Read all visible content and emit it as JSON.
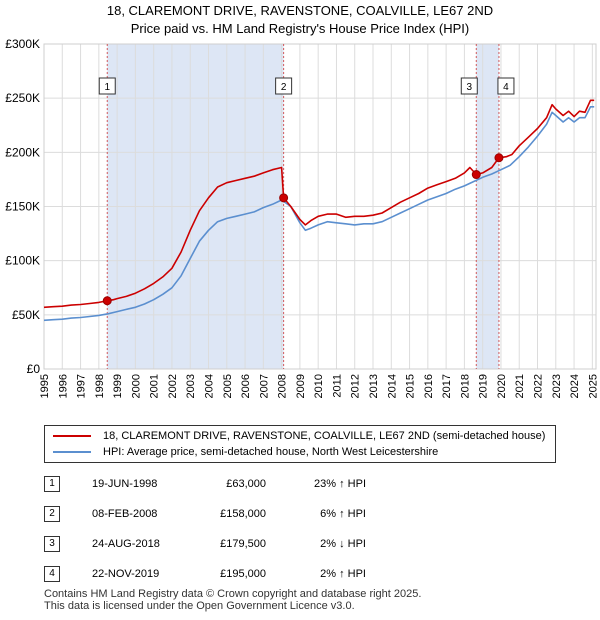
{
  "header": {
    "title_line1": "18, CLAREMONT DRIVE, RAVENSTONE, COALVILLE, LE67 2ND",
    "title_line2": "Price paid vs. HM Land Registry's House Price Index (HPI)"
  },
  "colors": {
    "price_line": "#cc0000",
    "hpi_line": "#5b8fcf",
    "shade": "#dde6f5",
    "marker_line": "#cc3333"
  },
  "chart_data": {
    "type": "line",
    "title": "Price paid vs. HM Land Registry's House Price Index (HPI)",
    "xlim": [
      1995.0,
      2025.2
    ],
    "ylim": [
      0,
      300000
    ],
    "x_ticks": [
      "1995",
      "1996",
      "1997",
      "1998",
      "1999",
      "2000",
      "2001",
      "2002",
      "2003",
      "2004",
      "2005",
      "2006",
      "2007",
      "2008",
      "2009",
      "2010",
      "2011",
      "2012",
      "2013",
      "2014",
      "2015",
      "2016",
      "2017",
      "2018",
      "2019",
      "2020",
      "2021",
      "2022",
      "2023",
      "2024",
      "2025"
    ],
    "y_ticks": [
      {
        "value": 0,
        "label": "£0"
      },
      {
        "value": 50000,
        "label": "£50K"
      },
      {
        "value": 100000,
        "label": "£100K"
      },
      {
        "value": 150000,
        "label": "£150K"
      },
      {
        "value": 200000,
        "label": "£200K"
      },
      {
        "value": 250000,
        "label": "£250K"
      },
      {
        "value": 300000,
        "label": "£300K"
      }
    ],
    "grid": true,
    "shaded_ranges": [
      [
        1998.46,
        2008.11
      ],
      [
        2018.65,
        2019.89
      ]
    ],
    "series": [
      {
        "name": "18, CLAREMONT DRIVE, RAVENSTONE, COALVILLE, LE67 2ND (semi-detached house)",
        "color": "#cc0000",
        "x": [
          1995.0,
          1995.5,
          1996.0,
          1996.5,
          1997.0,
          1997.5,
          1998.0,
          1998.46,
          1998.8,
          1999.0,
          1999.5,
          2000.0,
          2000.5,
          2001.0,
          2001.5,
          2002.0,
          2002.5,
          2003.0,
          2003.5,
          2004.0,
          2004.5,
          2005.0,
          2005.5,
          2006.0,
          2006.5,
          2007.0,
          2007.5,
          2008.0,
          2008.11,
          2008.5,
          2009.0,
          2009.3,
          2009.6,
          2010.0,
          2010.5,
          2011.0,
          2011.5,
          2012.0,
          2012.5,
          2013.0,
          2013.5,
          2014.0,
          2014.5,
          2015.0,
          2015.5,
          2016.0,
          2016.5,
          2017.0,
          2017.5,
          2018.0,
          2018.3,
          2018.65,
          2019.0,
          2019.5,
          2019.89,
          2020.3,
          2020.6,
          2021.0,
          2021.5,
          2022.0,
          2022.5,
          2022.8,
          2023.0,
          2023.4,
          2023.7,
          2024.0,
          2024.3,
          2024.6,
          2024.9,
          2025.1
        ],
        "y": [
          57000,
          57500,
          58000,
          59000,
          59500,
          60500,
          61500,
          63000,
          64000,
          65000,
          67000,
          70000,
          74000,
          79000,
          85000,
          93000,
          108000,
          128000,
          146000,
          158000,
          168000,
          172000,
          174000,
          176000,
          178000,
          181000,
          184000,
          186000,
          158000,
          150000,
          138000,
          133000,
          137000,
          141000,
          143000,
          143000,
          140000,
          141000,
          141000,
          142000,
          144000,
          149000,
          154000,
          158000,
          162000,
          167000,
          170000,
          173000,
          176000,
          181000,
          186000,
          179500,
          181000,
          186000,
          195000,
          196000,
          198000,
          206000,
          214000,
          222000,
          232000,
          244000,
          240000,
          234000,
          238000,
          233000,
          238000,
          237000,
          248000,
          248000
        ]
      },
      {
        "name": "HPI: Average price, semi-detached house, North West Leicestershire",
        "color": "#5b8fcf",
        "x": [
          1995.0,
          1995.5,
          1996.0,
          1996.5,
          1997.0,
          1997.5,
          1998.0,
          1998.5,
          1999.0,
          1999.5,
          2000.0,
          2000.5,
          2001.0,
          2001.5,
          2002.0,
          2002.5,
          2003.0,
          2003.5,
          2004.0,
          2004.5,
          2005.0,
          2005.5,
          2006.0,
          2006.5,
          2007.0,
          2007.5,
          2008.0,
          2008.5,
          2009.0,
          2009.3,
          2009.6,
          2010.0,
          2010.5,
          2011.0,
          2011.5,
          2012.0,
          2012.5,
          2013.0,
          2013.5,
          2014.0,
          2014.5,
          2015.0,
          2015.5,
          2016.0,
          2016.5,
          2017.0,
          2017.5,
          2018.0,
          2018.5,
          2019.0,
          2019.5,
          2020.0,
          2020.5,
          2021.0,
          2021.5,
          2022.0,
          2022.5,
          2022.8,
          2023.0,
          2023.4,
          2023.7,
          2024.0,
          2024.3,
          2024.6,
          2024.9,
          2025.1
        ],
        "y": [
          45000,
          45500,
          46000,
          47000,
          47500,
          48500,
          49500,
          51000,
          53000,
          55000,
          57000,
          60000,
          64000,
          69000,
          75000,
          86000,
          102000,
          118000,
          128000,
          136000,
          139000,
          141000,
          143000,
          145000,
          149000,
          152000,
          156000,
          150000,
          135000,
          128000,
          130000,
          133000,
          136000,
          135000,
          134000,
          133000,
          134000,
          134000,
          136000,
          140000,
          144000,
          148000,
          152000,
          156000,
          159000,
          162000,
          166000,
          169000,
          173000,
          177000,
          180000,
          184000,
          188000,
          196000,
          205000,
          215000,
          226000,
          237000,
          234000,
          228000,
          232000,
          228000,
          232000,
          232000,
          242000,
          242000
        ]
      }
    ],
    "sales": [
      {
        "label": "1",
        "x": 1998.46,
        "price": 63000
      },
      {
        "label": "2",
        "x": 2008.11,
        "price": 158000
      },
      {
        "label": "3",
        "x": 2018.65,
        "price": 179500
      },
      {
        "label": "4",
        "x": 2019.89,
        "price": 195000
      }
    ]
  },
  "legend": {
    "price_label": "18, CLAREMONT DRIVE, RAVENSTONE, COALVILLE, LE67 2ND (semi-detached house)",
    "hpi_label": "HPI: Average price, semi-detached house, North West Leicestershire"
  },
  "sales_table": [
    {
      "num": "1",
      "date": "19-JUN-1998",
      "price": "£63,000",
      "rel": "23% ↑ HPI"
    },
    {
      "num": "2",
      "date": "08-FEB-2008",
      "price": "£158,000",
      "rel": "6% ↑ HPI"
    },
    {
      "num": "3",
      "date": "24-AUG-2018",
      "price": "£179,500",
      "rel": "2% ↓ HPI"
    },
    {
      "num": "4",
      "date": "22-NOV-2019",
      "price": "£195,000",
      "rel": "2% ↑ HPI"
    }
  ],
  "footer": {
    "line1": "Contains HM Land Registry data © Crown copyright and database right 2025.",
    "line2": "This data is licensed under the Open Government Licence v3.0."
  }
}
